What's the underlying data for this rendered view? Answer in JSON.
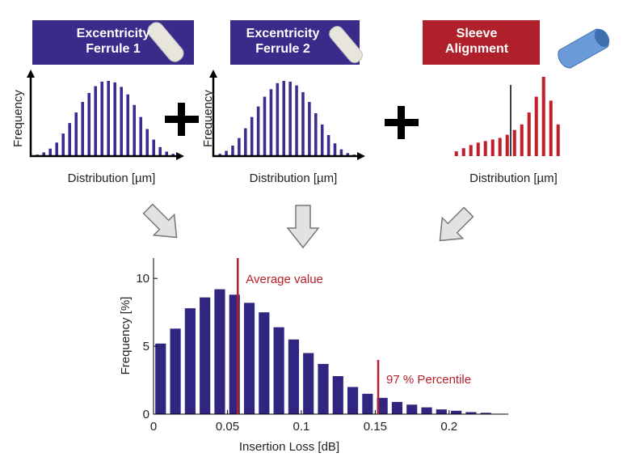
{
  "chart_data": [
    {
      "type": "bar",
      "title": "Excentricity\nFerrule 1",
      "xlabel": "Distribution [µm]",
      "ylabel": "Frequency",
      "color": "#3b2d8f",
      "ylim": [
        0,
        100
      ],
      "values": [
        2,
        5,
        10,
        18,
        30,
        44,
        58,
        72,
        84,
        93,
        99,
        100,
        98,
        92,
        82,
        68,
        52,
        36,
        22,
        12,
        6,
        3
      ]
    },
    {
      "type": "bar",
      "title": "Excentricity\nFerrule 2",
      "xlabel": "Distribution  [µm]",
      "ylabel": "Frequency",
      "color": "#3b2d8f",
      "ylim": [
        0,
        100
      ],
      "values": [
        3,
        7,
        14,
        24,
        37,
        52,
        66,
        79,
        89,
        97,
        100,
        99,
        94,
        85,
        72,
        57,
        42,
        28,
        17,
        9,
        4,
        2
      ]
    },
    {
      "type": "bar",
      "title": "Sleeve\nAlignment",
      "xlabel": "Distribution [µm]",
      "color": "#c0202a",
      "ylim": [
        0,
        100
      ],
      "values": [
        6,
        10,
        14,
        17,
        19,
        21,
        23,
        27,
        33,
        40,
        55,
        75,
        100,
        70,
        40
      ]
    },
    {
      "type": "histogram",
      "xlabel": "Insertion Loss [dB]",
      "ylabel": "Frequency [%]",
      "color": "#302681",
      "bins": [
        0,
        0.01,
        0.02,
        0.03,
        0.04,
        0.05,
        0.06,
        0.07,
        0.08,
        0.09,
        0.1,
        0.11,
        0.12,
        0.13,
        0.14,
        0.15,
        0.16,
        0.17,
        0.18,
        0.19,
        0.2,
        0.21,
        0.22,
        0.23
      ],
      "values": [
        5.2,
        6.3,
        7.8,
        8.6,
        9.2,
        8.8,
        8.2,
        7.5,
        6.4,
        5.5,
        4.5,
        3.7,
        2.8,
        2.0,
        1.5,
        1.2,
        0.9,
        0.7,
        0.5,
        0.35,
        0.25,
        0.15,
        0.1
      ],
      "xlim": [
        0,
        0.24
      ],
      "ylim": [
        0,
        11.5
      ],
      "xticks": [
        0,
        0.05,
        0.1,
        0.15,
        0.2
      ],
      "yticks": [
        0,
        5,
        10
      ],
      "annotations": [
        {
          "x": 0.057,
          "label": "Average value"
        },
        {
          "x": 0.152,
          "label": "97 % Percentile"
        }
      ],
      "annotation_color": "#b5202a"
    }
  ]
}
